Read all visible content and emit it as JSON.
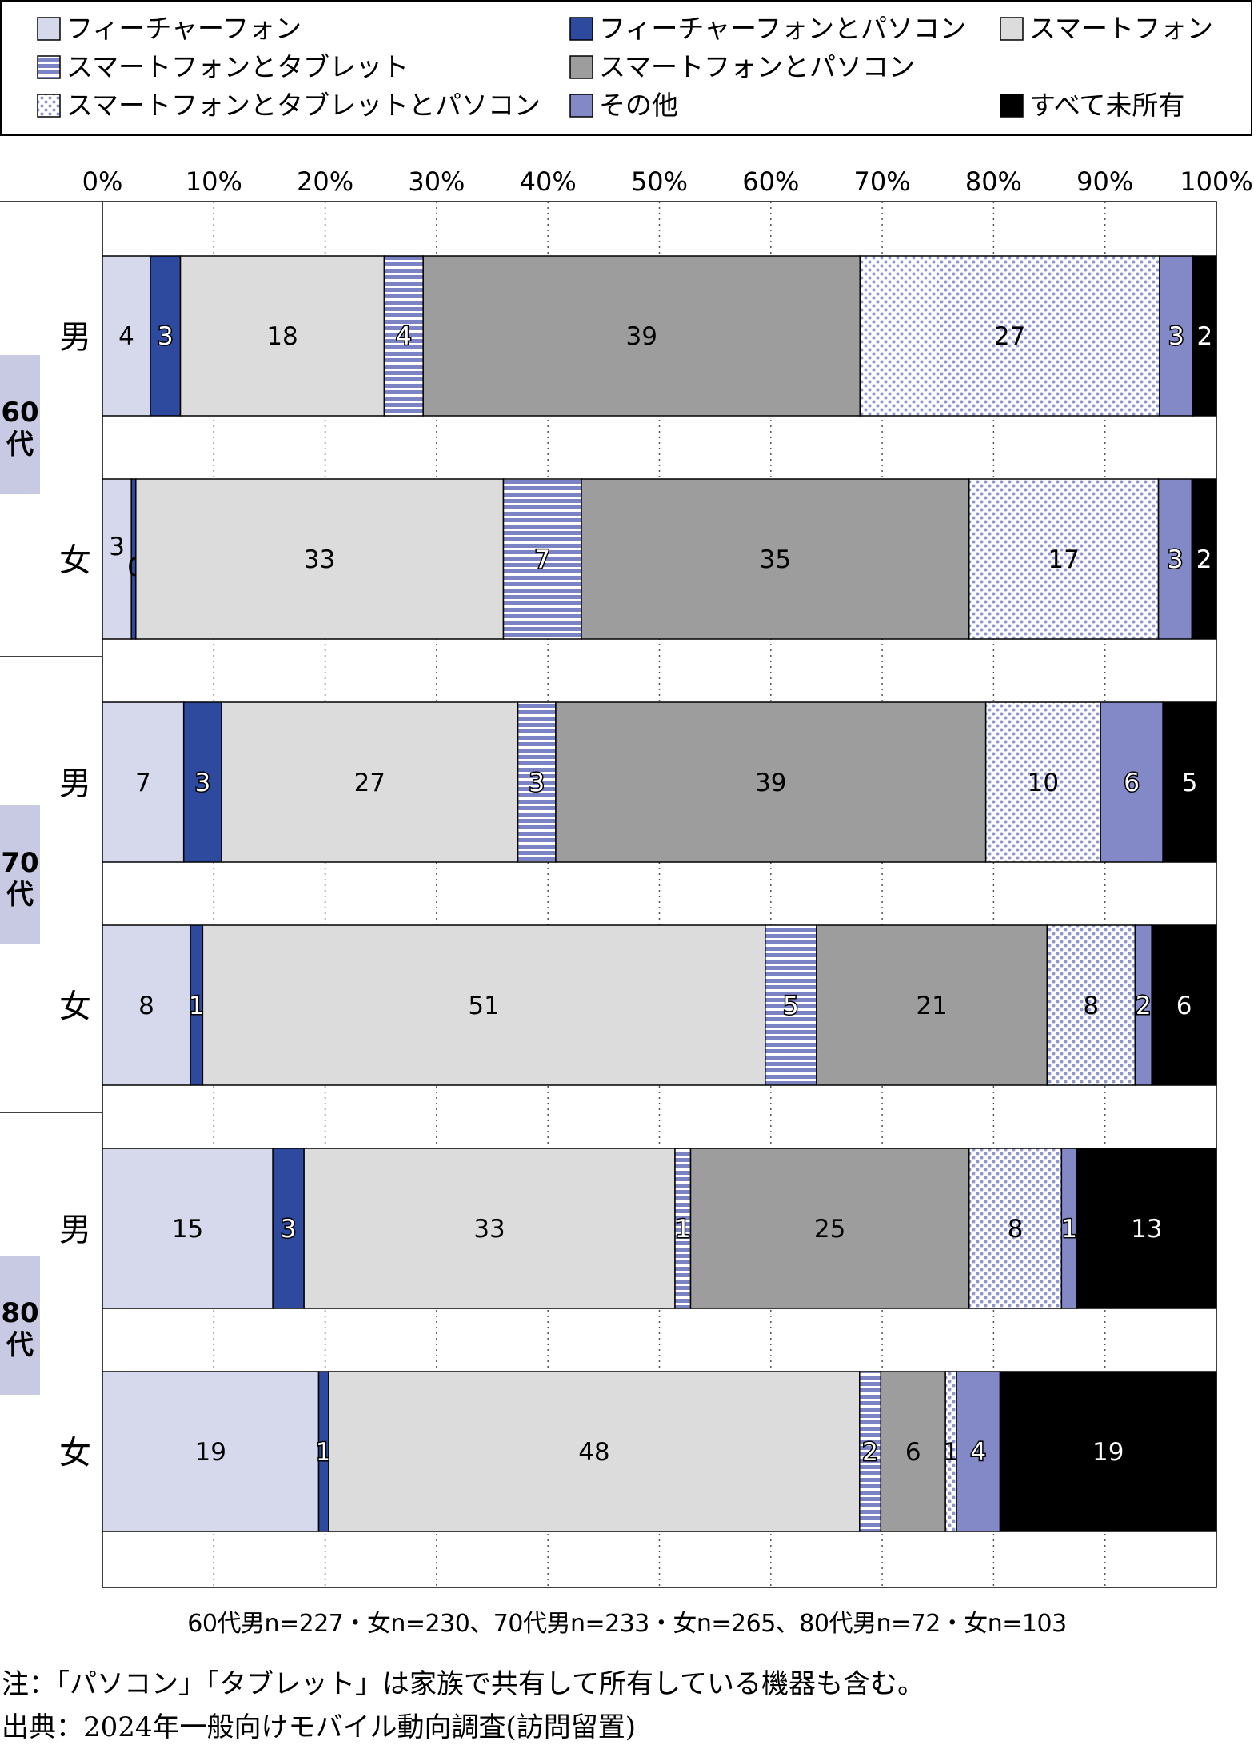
{
  "chart_data": {
    "type": "bar",
    "orientation": "horizontal",
    "stacked": true,
    "percent": true,
    "xlim": [
      0,
      100
    ],
    "ticks": [
      "0%",
      "10%",
      "20%",
      "30%",
      "40%",
      "50%",
      "60%",
      "70%",
      "80%",
      "90%",
      "100%"
    ],
    "grid": "vertical-dotted",
    "legend_position": "top",
    "groups": [
      {
        "label": "60代",
        "rows": [
          "男",
          "女"
        ]
      },
      {
        "label": "70代",
        "rows": [
          "男",
          "女"
        ]
      },
      {
        "label": "80代",
        "rows": [
          "男",
          "女"
        ]
      }
    ],
    "categories": [
      "男",
      "女",
      "男",
      "女",
      "男",
      "女"
    ],
    "series": [
      {
        "name": "フィーチャーフォン",
        "color": "#d6d8ec",
        "pattern": "solid",
        "values": [
          4.3,
          2.6,
          7.3,
          7.9,
          15.3,
          19.4
        ],
        "labels": [
          "4",
          "3",
          "7",
          "8",
          "15",
          "19"
        ]
      },
      {
        "name": "フィーチャーフォンとパソコン",
        "color": "#2e4a9e",
        "pattern": "solid",
        "values": [
          2.7,
          0.4,
          3.4,
          1.1,
          2.8,
          0.9
        ],
        "labels": [
          "3",
          "0",
          "3",
          "1",
          "3",
          "1"
        ]
      },
      {
        "name": "スマートフォン",
        "color": "#dcdcdc",
        "pattern": "solid",
        "values": [
          18.3,
          33.0,
          26.6,
          50.5,
          33.3,
          47.6
        ],
        "labels": [
          "18",
          "33",
          "27",
          "51",
          "33",
          "48"
        ]
      },
      {
        "name": "スマートフォンとタブレット",
        "color": "#7b83c4",
        "pattern": "horizontal-stripes",
        "values": [
          3.5,
          7.0,
          3.4,
          4.6,
          1.4,
          1.9
        ],
        "labels": [
          "4",
          "7",
          "3",
          "5",
          "1",
          "2"
        ]
      },
      {
        "name": "スマートフォンとパソコン",
        "color": "#9d9d9d",
        "pattern": "solid",
        "values": [
          39.2,
          34.8,
          38.6,
          20.7,
          25.0,
          5.8
        ],
        "labels": [
          "39",
          "35",
          "39",
          "21",
          "25",
          "6"
        ]
      },
      {
        "name": "スマートフォンとタブレットとパソコン",
        "color": "#8f96d0",
        "pattern": "dots",
        "values": [
          26.9,
          17.0,
          10.3,
          7.9,
          8.3,
          1.0
        ],
        "labels": [
          "27",
          "17",
          "10",
          "8",
          "8",
          "1"
        ]
      },
      {
        "name": "その他",
        "color": "#8389c6",
        "pattern": "solid",
        "values": [
          3.0,
          3.0,
          5.6,
          1.5,
          1.4,
          3.9
        ],
        "labels": [
          "3",
          "3",
          "6",
          "2",
          "1",
          "4"
        ]
      },
      {
        "name": "すべて未所有",
        "color": "#000000",
        "pattern": "solid",
        "values": [
          2.1,
          2.2,
          4.8,
          5.8,
          12.5,
          19.4
        ],
        "labels": [
          "2",
          "2",
          "5",
          "6",
          "13",
          "19"
        ]
      }
    ]
  },
  "sample_note": "60代男n=227・女n=230、70代男n=233・女n=265、80代男n=72・女n=103",
  "note": "注：「パソコン」「タブレット」は家族で共有して所有している機器も含む。",
  "source": "出典：2024年一般向けモバイル動向調査(訪問留置)"
}
